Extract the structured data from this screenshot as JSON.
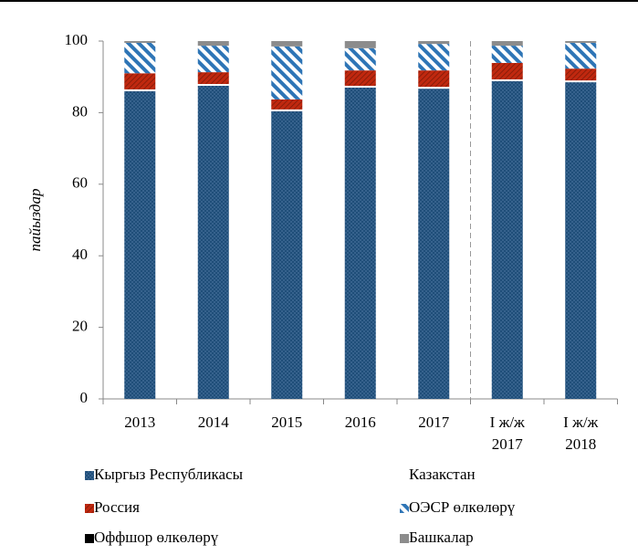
{
  "chart_data": {
    "type": "stacked_bar",
    "y_label": "пайыздар",
    "categories": [
      "2013",
      "2014",
      "2015",
      "2016",
      "2017",
      "I ж/ж 2017",
      "I ж/ж 2018"
    ],
    "series": [
      {
        "name": "Кыргыз Республикасы",
        "color": "#1f4e79",
        "pattern": "dots",
        "values": [
          86,
          87.5,
          80.4,
          87,
          86.7,
          88.8,
          88.5
        ]
      },
      {
        "name": "Казакстан",
        "color": "#ffffff",
        "values": [
          0.5,
          0.5,
          0.5,
          0.5,
          0.5,
          0.5,
          0.5
        ]
      },
      {
        "name": "Россия",
        "color": "#c0280f",
        "pattern": "hatch",
        "values": [
          4.5,
          3.3,
          2.8,
          4.3,
          4.6,
          4.6,
          3.3
        ]
      },
      {
        "name": "ОЭСР өлкөлөрү",
        "color": "#2e75b6",
        "pattern": "stripes",
        "values": [
          8.5,
          7.4,
          14.8,
          6.2,
          7.4,
          4.8,
          7.2
        ]
      },
      {
        "name": "Оффшор өлкөлөрү",
        "color": "#000000",
        "values": [
          0,
          0,
          0,
          0,
          0,
          0,
          0
        ]
      },
      {
        "name": "Башкалар",
        "color": "#8c8c8c",
        "values": [
          0.5,
          1.3,
          1.5,
          2,
          0.8,
          1.3,
          0.5
        ]
      }
    ],
    "ylim": [
      0,
      100
    ],
    "yticks": [
      0,
      20,
      40,
      60,
      80,
      100
    ]
  }
}
